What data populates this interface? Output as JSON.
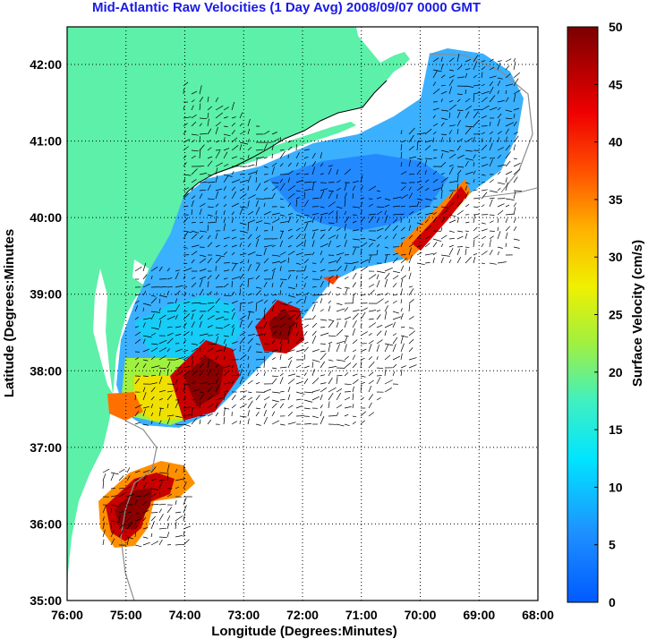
{
  "title": "Mid-Atlantic Raw Velocities (1 Day Avg) 2008/09/07 0000 GMT",
  "map": {
    "xlabel": "Longitude (Degrees:Minutes)",
    "ylabel": "Latitude (Degrees:Minutes",
    "lon_ticks": [
      "76:00",
      "75:00",
      "74:00",
      "73:00",
      "72:00",
      "71:00",
      "70:00",
      "69:00",
      "68:00"
    ],
    "lat_ticks": [
      "42:00",
      "41:00",
      "40:00",
      "39:00",
      "38:00",
      "37:00",
      "36:00",
      "35:00"
    ],
    "land_color": "#5cf0a8",
    "grid": true
  },
  "colorbar": {
    "label": "Surface Velocity (cm/s)",
    "ticks": [
      "50",
      "45",
      "40",
      "35",
      "30",
      "25",
      "20",
      "15",
      "10",
      "5",
      "0"
    ],
    "min": 0,
    "max": 50
  }
}
